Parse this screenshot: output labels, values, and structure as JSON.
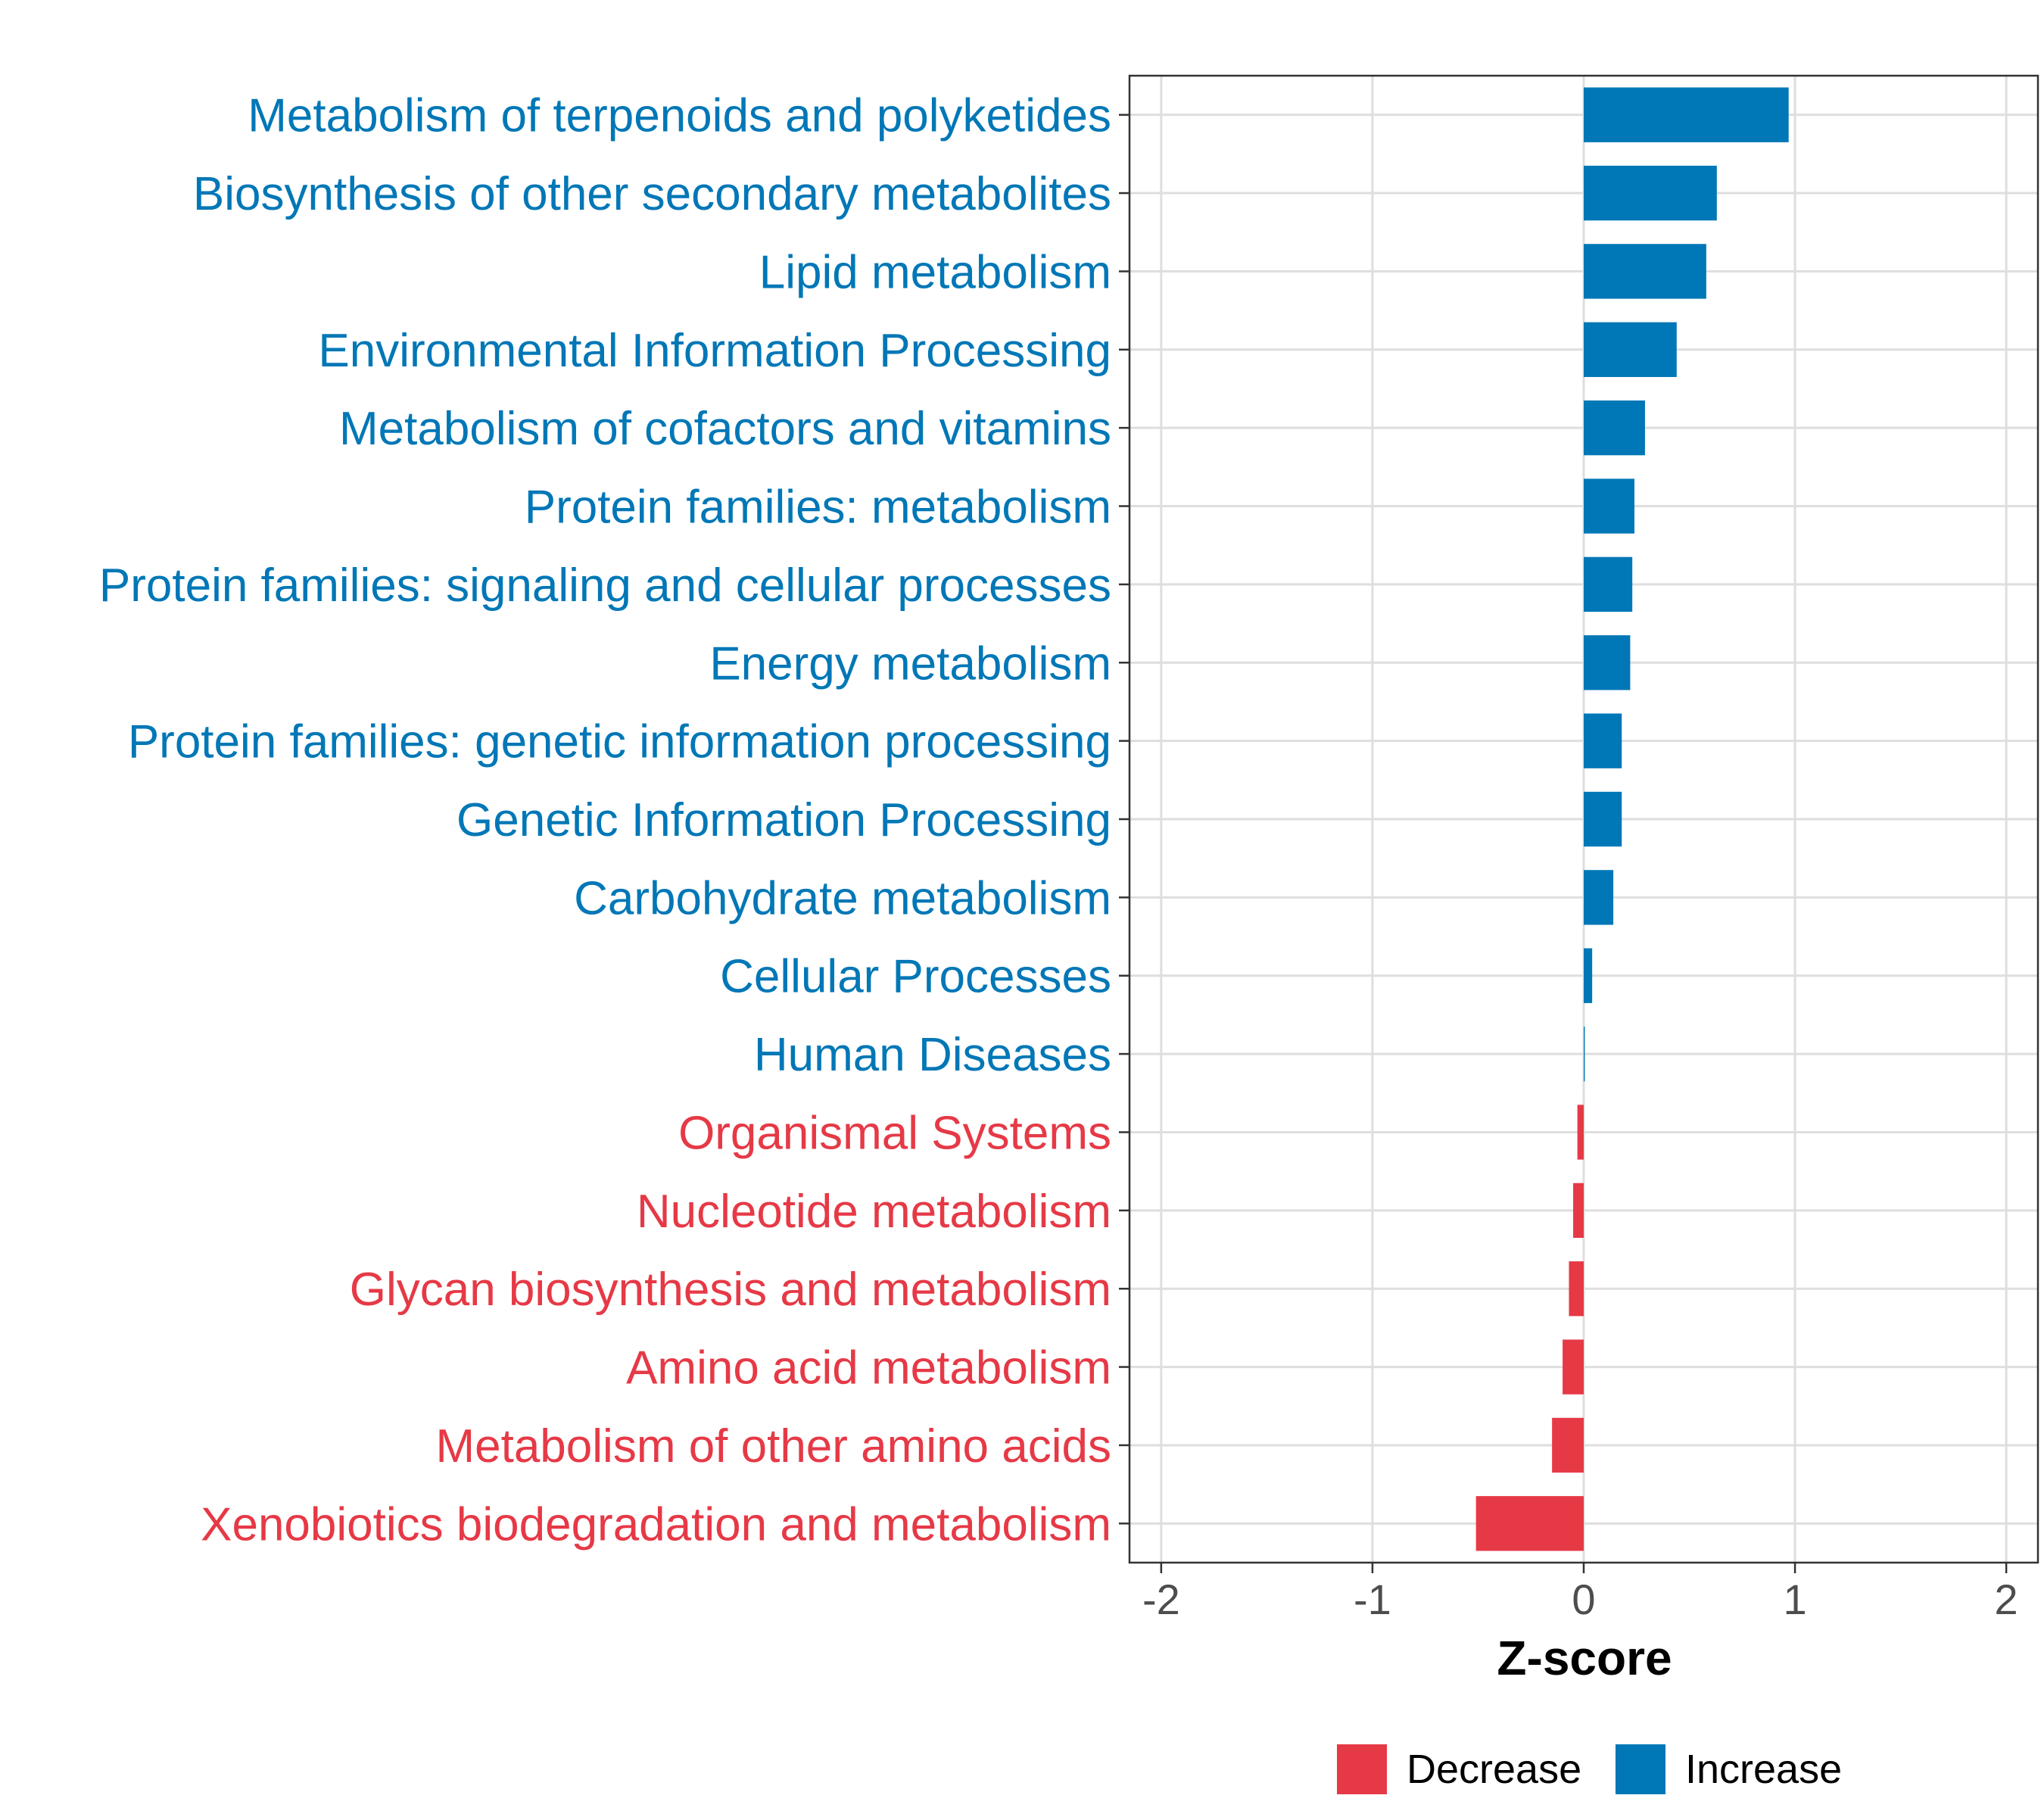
{
  "chart_data": {
    "type": "bar",
    "orientation": "horizontal",
    "title": "",
    "xlabel": "Z-score",
    "ylabel": "",
    "xlim": [
      -2.15,
      2.15
    ],
    "x_ticks": [
      -2,
      -1,
      0,
      1,
      2
    ],
    "x_tick_labels": [
      "-2",
      "-1",
      "0",
      "1",
      "2"
    ],
    "grid": true,
    "legend_position": "bottom",
    "colors": {
      "Decrease": "#e63946",
      "Increase": "#0077b6"
    },
    "legend": [
      {
        "label": "Decrease",
        "color": "#e63946"
      },
      {
        "label": "Increase",
        "color": "#0077b6"
      }
    ],
    "categories": [
      "Metabolism of terpenoids and polyketides",
      "Biosynthesis of other secondary metabolites",
      "Lipid metabolism",
      "Environmental Information Processing",
      "Metabolism of cofactors and vitamins",
      "Protein families: metabolism",
      "Protein families: signaling and cellular processes",
      "Energy metabolism",
      "Protein families: genetic information processing",
      "Genetic Information Processing",
      "Carbohydrate metabolism",
      "Cellular Processes",
      "Human Diseases",
      "Organismal Systems",
      "Nucleotide metabolism",
      "Glycan biosynthesis and metabolism",
      "Amino acid metabolism",
      "Metabolism of other amino acids",
      "Xenobiotics biodegradation and metabolism"
    ],
    "values": [
      0.97,
      0.63,
      0.58,
      0.44,
      0.29,
      0.24,
      0.23,
      0.22,
      0.18,
      0.18,
      0.14,
      0.04,
      0.005,
      -0.03,
      -0.05,
      -0.07,
      -0.1,
      -0.15,
      -0.51
    ],
    "groups": [
      "Increase",
      "Increase",
      "Increase",
      "Increase",
      "Increase",
      "Increase",
      "Increase",
      "Increase",
      "Increase",
      "Increase",
      "Increase",
      "Increase",
      "Increase",
      "Decrease",
      "Decrease",
      "Decrease",
      "Decrease",
      "Decrease",
      "Decrease"
    ]
  }
}
